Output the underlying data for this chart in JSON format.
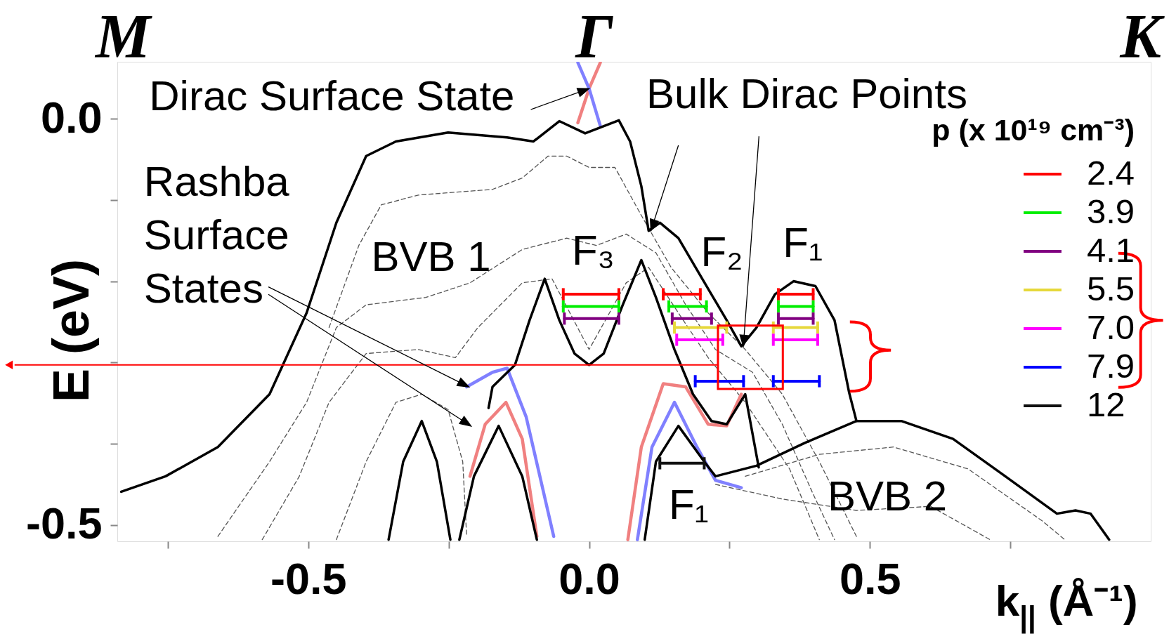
{
  "chart_data": {
    "type": "line",
    "xlabel": "k$_{||}$ (Å⁻¹)",
    "ylabel": "E (eV)",
    "legend_title": "p (x 10¹⁹ cm⁻³)",
    "xlim": [
      -0.84,
      1.0
    ],
    "ylim": [
      -0.52,
      0.07
    ],
    "xticks": [
      {
        "value": -0.75,
        "label": null
      },
      {
        "value": -0.5,
        "label": "-0.5"
      },
      {
        "value": -0.25,
        "label": null
      },
      {
        "value": 0,
        "label": "0.0"
      },
      {
        "value": 0.25,
        "label": null
      },
      {
        "value": 0.5,
        "label": "0.5"
      },
      {
        "value": 0.75,
        "label": null
      }
    ],
    "yticks": [
      {
        "value": -0.5,
        "label": "-0.5"
      },
      {
        "value": -0.4,
        "label": null
      },
      {
        "value": -0.3,
        "label": null
      },
      {
        "value": -0.2,
        "label": null
      },
      {
        "value": -0.1,
        "label": null
      },
      {
        "value": 0,
        "label": "0.0"
      }
    ],
    "grid": false,
    "legend": "top right",
    "annotations": [
      "M",
      "Γ",
      "K",
      {
        "text": "Dirac Surface State",
        "x": 0,
        "y": 0.037
      },
      {
        "text": "Bulk Dirac Points",
        "x": 0.11,
        "y": -0.138
      },
      {
        "text": "Rashba Surface States",
        "x": -0.214,
        "y": -0.33
      },
      "BVB 1",
      "F₃",
      "F₂",
      "F₁",
      "F₁",
      "BVB 2"
    ],
    "ref_lines": [
      {
        "axis": "y",
        "value": -0.303,
        "color": "#ff0000"
      }
    ],
    "series": [
      {
        "color": "#555555",
        "line_style": "dashed",
        "x": [
          -0.463,
          -0.41,
          -0.37,
          -0.304,
          -0.172,
          -0.119,
          -0.073,
          -0.04,
          0,
          0.046,
          0.093,
          0.146,
          0.212,
          0.278,
          0.344,
          0.41,
          0.476,
          null,
          -0.661,
          -0.569,
          -0.503,
          -0.45,
          -0.397,
          -0.291,
          -0.212,
          -0.119,
          -0.04,
          0.013,
          0.066,
          0.119,
          0.172,
          0.225,
          0.291,
          0.344,
          0.397,
          0.437,
          null,
          -0.582,
          -0.516,
          -0.463,
          -0.397,
          -0.304,
          -0.238,
          -0.198,
          -0.119,
          -0.066,
          0,
          0.066,
          0.106,
          0.159,
          0.212,
          0.278,
          0.357,
          0.41,
          null,
          0.278,
          0.41,
          0.542,
          0.675,
          0.807,
          0.847,
          null,
          0.225,
          0.344,
          0.476,
          0.608,
          0.714,
          null,
          -0.45,
          -0.397,
          -0.344,
          -0.298,
          -0.251,
          -0.225,
          -0.218
        ],
        "values": [
          -0.257,
          -0.156,
          -0.106,
          -0.094,
          -0.087,
          -0.073,
          -0.046,
          -0.046,
          -0.06,
          -0.06,
          -0.119,
          -0.183,
          -0.239,
          -0.284,
          -0.339,
          -0.422,
          -0.514,
          null,
          -0.514,
          -0.422,
          -0.349,
          -0.257,
          -0.229,
          -0.22,
          -0.202,
          -0.161,
          -0.147,
          -0.156,
          -0.142,
          -0.165,
          -0.229,
          -0.284,
          -0.312,
          -0.376,
          -0.459,
          -0.518,
          null,
          -0.518,
          -0.44,
          -0.349,
          -0.289,
          -0.284,
          -0.294,
          -0.257,
          -0.202,
          -0.197,
          -0.284,
          -0.202,
          -0.183,
          -0.239,
          -0.294,
          -0.349,
          -0.431,
          -0.518,
          null,
          -0.44,
          -0.413,
          -0.404,
          -0.431,
          -0.495,
          -0.518,
          null,
          -0.45,
          -0.468,
          -0.482,
          -0.477,
          -0.518,
          null,
          -0.518,
          -0.422,
          -0.349,
          -0.339,
          -0.358,
          -0.422,
          -0.514
        ]
      },
      {
        "color": "#f08080",
        "x": [
          -0.02,
          0,
          0.02,
          null,
          -0.212,
          -0.185,
          -0.148,
          -0.119,
          -0.093,
          null,
          0.069,
          0.093,
          0.132,
          0.172,
          0.212,
          0.245,
          0.271
        ],
        "values": [
          -0.005,
          0.037,
          0.069,
          null,
          -0.44,
          -0.376,
          -0.349,
          -0.394,
          -0.514,
          null,
          -0.518,
          -0.404,
          -0.326,
          -0.33,
          -0.376,
          -0.378,
          -0.339
        ]
      },
      {
        "color": "#8080ff",
        "x": [
          -0.02,
          0,
          0.02,
          null,
          -0.218,
          -0.172,
          -0.146,
          -0.112,
          -0.063,
          null,
          0.086,
          0.112,
          0.152,
          0.192,
          0.225,
          0.271
        ],
        "values": [
          0.069,
          0.037,
          -0.009,
          null,
          -0.33,
          -0.312,
          -0.307,
          -0.367,
          -0.514,
          null,
          -0.518,
          -0.404,
          -0.349,
          -0.404,
          -0.445,
          -0.454
        ]
      },
      {
        "color": "#000000",
        "x": [
          -0.833,
          -0.754,
          -0.661,
          -0.569,
          -0.503,
          -0.45,
          -0.397,
          -0.344,
          -0.251,
          -0.146,
          -0.099,
          -0.053,
          -0.007,
          0.053,
          0.073,
          0.093,
          0.106,
          0.126,
          0.159,
          0.198,
          0.245,
          0.271,
          0.298,
          0.331,
          0.364,
          0.403,
          0.437,
          0.463,
          0.476,
          null,
          -0.179,
          -0.172,
          -0.132,
          -0.106,
          -0.079,
          -0.053,
          -0.026,
          0,
          0.026,
          0.06,
          0.093,
          0.119,
          0.152,
          0.185,
          0.218,
          0.245,
          0.278,
          0.302,
          null,
          -0.357,
          -0.331,
          -0.298,
          -0.271,
          -0.247,
          null,
          -0.231,
          -0.205,
          -0.161,
          -0.119,
          -0.093,
          null,
          0.099,
          0.119,
          0.159,
          0.205,
          0.225,
          0.298,
          0.384,
          0.476,
          0.556,
          0.648,
          0.741,
          0.833,
          0.866,
          0.893,
          0.926
        ],
        "values": [
          -0.459,
          -0.44,
          -0.404,
          -0.339,
          -0.239,
          -0.128,
          -0.046,
          -0.028,
          -0.017,
          -0.023,
          -0.028,
          -0.003,
          -0.018,
          -0.002,
          -0.028,
          -0.083,
          -0.138,
          -0.128,
          -0.147,
          -0.193,
          -0.248,
          -0.28,
          -0.257,
          -0.216,
          -0.2,
          -0.206,
          -0.248,
          -0.337,
          -0.372,
          null,
          -0.356,
          -0.33,
          -0.303,
          -0.248,
          -0.197,
          -0.248,
          -0.289,
          -0.303,
          -0.289,
          -0.229,
          -0.174,
          -0.22,
          -0.284,
          -0.339,
          -0.372,
          -0.376,
          -0.339,
          -0.429,
          null,
          -0.518,
          -0.422,
          -0.372,
          -0.422,
          -0.518,
          null,
          -0.518,
          -0.44,
          -0.378,
          -0.44,
          -0.518,
          null,
          -0.518,
          -0.422,
          -0.378,
          -0.422,
          -0.44,
          -0.427,
          -0.399,
          -0.372,
          -0.372,
          -0.394,
          -0.44,
          -0.486,
          -0.482,
          -0.486,
          -0.518
        ]
      },
      {
        "name": "2.4",
        "color": "#ff0000",
        "x": [
          -0.046,
          0.053,
          null,
          0.132,
          0.198,
          null,
          0.337,
          0.399
        ],
        "values": [
          -0.216,
          -0.216,
          null,
          -0.216,
          -0.216,
          null,
          -0.216,
          -0.216
        ]
      },
      {
        "name": "3.9",
        "color": "#00ee00",
        "x": [
          -0.046,
          0.053,
          null,
          0.142,
          0.209,
          null,
          0.337,
          0.399
        ],
        "values": [
          -0.231,
          -0.231,
          null,
          -0.231,
          -0.231,
          null,
          -0.231,
          -0.231
        ]
      },
      {
        "name": "4.1",
        "color": "#800080",
        "x": [
          -0.044,
          0.053,
          null,
          0.148,
          0.218,
          null,
          0.337,
          0.399
        ],
        "values": [
          -0.246,
          -0.246,
          null,
          -0.246,
          -0.246,
          null,
          -0.246,
          -0.246
        ]
      },
      {
        "name": "5.5",
        "color": "#e6d83a",
        "x": [
          0.152,
          0.245,
          null,
          0.328,
          0.407
        ],
        "values": [
          -0.257,
          -0.257,
          null,
          -0.257,
          -0.257
        ]
      },
      {
        "name": "7.0",
        "color": "#ff00ff",
        "x": [
          0.156,
          0.238,
          null,
          0.328,
          0.407
        ],
        "values": [
          -0.272,
          -0.272,
          null,
          -0.272,
          -0.272
        ]
      },
      {
        "name": "7.9",
        "color": "#0000ff",
        "x": [
          0.189,
          0.275,
          null,
          0.328,
          0.41
        ],
        "values": [
          -0.323,
          -0.323,
          null,
          -0.323,
          -0.323
        ]
      },
      {
        "name": "12",
        "color": "#111111",
        "x": [
          0.126,
          0.205
        ],
        "values": [
          -0.424,
          -0.424
        ]
      }
    ]
  }
}
